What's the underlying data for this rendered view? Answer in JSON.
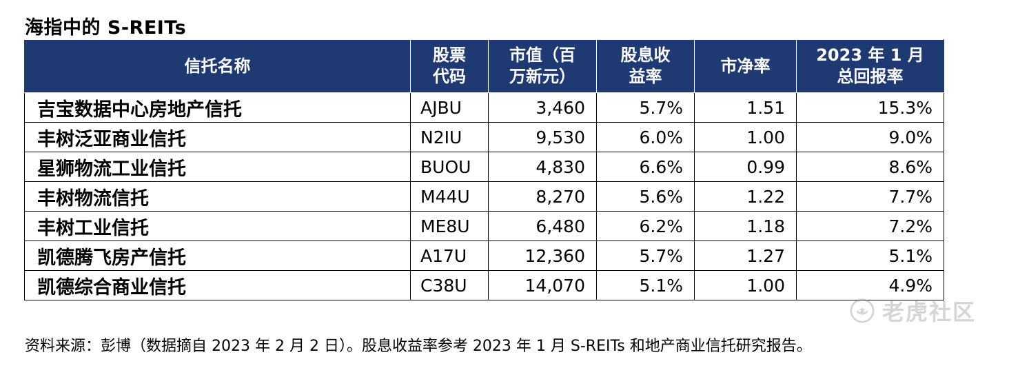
{
  "title": "海指中的 S-REITs",
  "table": {
    "headers": [
      [
        "信托名称"
      ],
      [
        "股票",
        "代码"
      ],
      [
        "市值（百",
        "万新元）"
      ],
      [
        "股息收",
        "益率"
      ],
      [
        "市净率"
      ],
      [
        "2023 年 1 月",
        "总回报率"
      ]
    ],
    "rows": [
      [
        "吉宝数据中心房地产信托",
        "AJBU",
        "3,460",
        "5.7%",
        "1.51",
        "15.3%"
      ],
      [
        "丰树泛亚商业信托",
        "N2IU",
        "9,530",
        "6.0%",
        "1.00",
        "9.0%"
      ],
      [
        "星狮物流工业信托",
        "BUOU",
        "4,830",
        "6.6%",
        "0.99",
        "8.6%"
      ],
      [
        "丰树物流信托",
        "M44U",
        "8,270",
        "5.6%",
        "1.22",
        "7.7%"
      ],
      [
        "丰树工业信托",
        "ME8U",
        "6,480",
        "6.2%",
        "1.18",
        "7.2%"
      ],
      [
        "凯德腾飞房产信托",
        "A17U",
        "12,360",
        "5.7%",
        "1.27",
        "5.1%"
      ],
      [
        "凯德综合商业信托",
        "C38U",
        "14,070",
        "5.1%",
        "1.00",
        "4.9%"
      ]
    ]
  },
  "source_note": "资料来源：彭博（数据摘自 2023 年 2 月 2 日）。股息收益率参考 2023 年 1 月 S-REITs 和地产商业信托研究报告。",
  "watermark": {
    "text": "老虎社区",
    "icon": "tiger-community-logo-icon"
  },
  "colors": {
    "header_bg": "#1f3a73",
    "header_text": "#ffffff"
  }
}
